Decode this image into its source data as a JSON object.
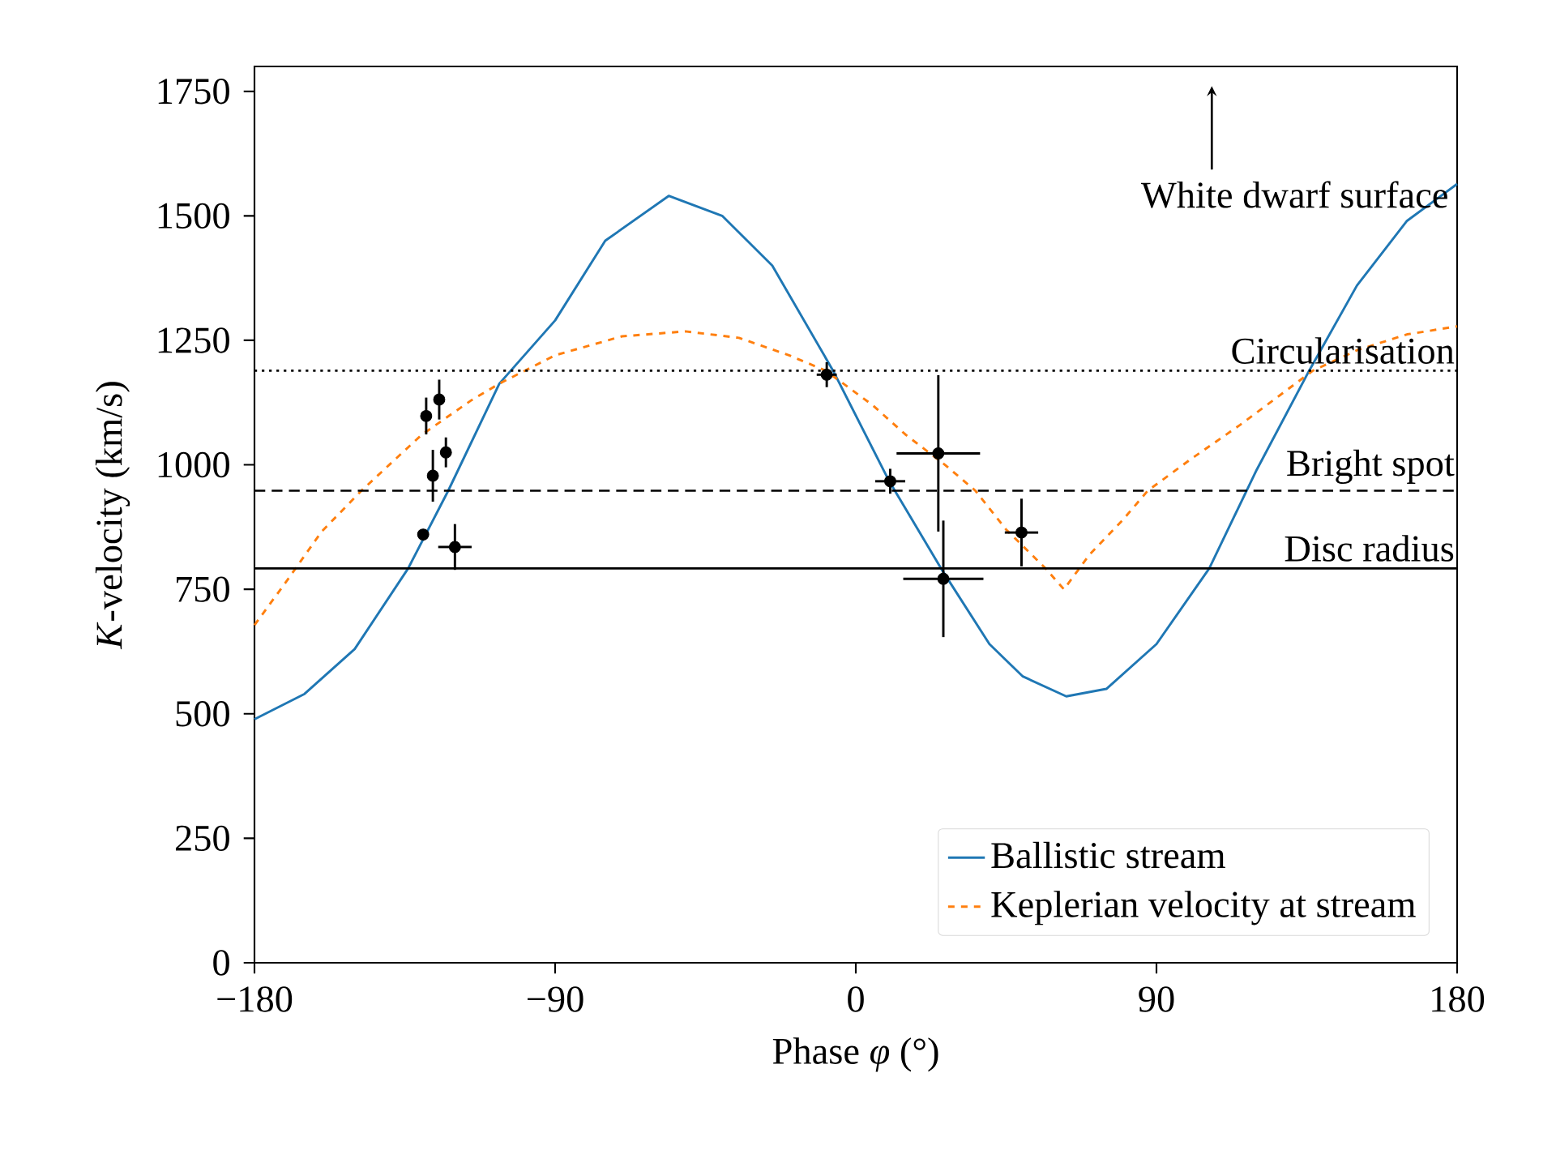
{
  "chart_data": {
    "type": "line",
    "xlabel": "Phase *φ* (°)",
    "ylabel": "*K*-velocity (km/s)",
    "xlim": [
      -180,
      180
    ],
    "ylim": [
      0,
      1800
    ],
    "xticks": [
      {
        "value": -180,
        "label": "−180"
      },
      {
        "value": -90,
        "label": "−90"
      },
      0,
      90,
      180
    ],
    "yticks": [
      0,
      250,
      500,
      750,
      1000,
      1250,
      1500,
      1750
    ],
    "grid": false,
    "legend": "bottom right",
    "line_style": "solid",
    "marker": "none",
    "series": [
      {
        "name": "Ballistic stream",
        "color": "#1f77b4",
        "x": [
          -180,
          -165,
          -150,
          -134,
          -122,
          -106.7,
          -90,
          -75,
          -56,
          -40,
          -25,
          -6.8,
          10,
          25.5,
          40,
          50,
          63,
          75,
          90,
          105.8,
          120,
          135.7,
          150,
          165,
          180
        ],
        "values": [
          489,
          540,
          630,
          792,
          948,
          1163,
          1290,
          1450,
          1540,
          1500,
          1400,
          1189,
          967,
          792,
          640,
          575,
          535,
          550,
          640,
          792,
          990,
          1189,
          1360,
          1490,
          1564
        ]
      },
      {
        "name": "Keplerian velocity at stream",
        "color": "#ff7f0e",
        "line_style": "dashed",
        "x": [
          -180,
          -170,
          -160,
          -148,
          -130,
          -115,
          -106.7,
          -90,
          -70,
          -51,
          -35,
          -20,
          -9,
          5,
          15,
          26.7,
          35.8,
          45,
          56.8,
          62.3,
          70,
          80,
          87.4,
          100,
          115,
          136.8,
          150,
          165,
          180
        ],
        "values": [
          678,
          770,
          865,
          948,
          1060,
          1130,
          1163,
          1220,
          1258,
          1268,
          1255,
          1220,
          1189,
          1120,
          1060,
          1000,
          948,
          870,
          792,
          750,
          820,
          890,
          948,
          1010,
          1080,
          1189,
          1230,
          1262,
          1278
        ]
      },
      {
        "type": "scatter",
        "color": "#000000",
        "marker": "circle",
        "x": [
          -129.5,
          -128.6,
          -126.6,
          -124.7,
          -122.7,
          -120,
          -8.7,
          10.3,
          24.7,
          26.2,
          49.6
        ],
        "values": [
          860,
          1098,
          978,
          1131,
          1025,
          835,
          1181,
          967,
          1023,
          771,
          864
        ],
        "errors": [
          null,
          37,
          52,
          40,
          30,
          46,
          25,
          25,
          157,
          117,
          68
        ],
        "xerrors": [
          null,
          null,
          1.5,
          null,
          null,
          5,
          3,
          4.5,
          12.5,
          12,
          5
        ]
      }
    ],
    "ref_lines": [
      {
        "axis": "y",
        "value": 1189,
        "label": "Circularisation",
        "color": "#000000",
        "line_style": "dotted"
      },
      {
        "axis": "y",
        "value": 948,
        "label": "Bright spot",
        "color": "#000000",
        "line_style": "dashed"
      },
      {
        "axis": "y",
        "value": 792,
        "label": "Disc radius",
        "color": "#000000",
        "line_style": "solid"
      }
    ],
    "annotations": [
      "White dwarf surface"
    ]
  }
}
